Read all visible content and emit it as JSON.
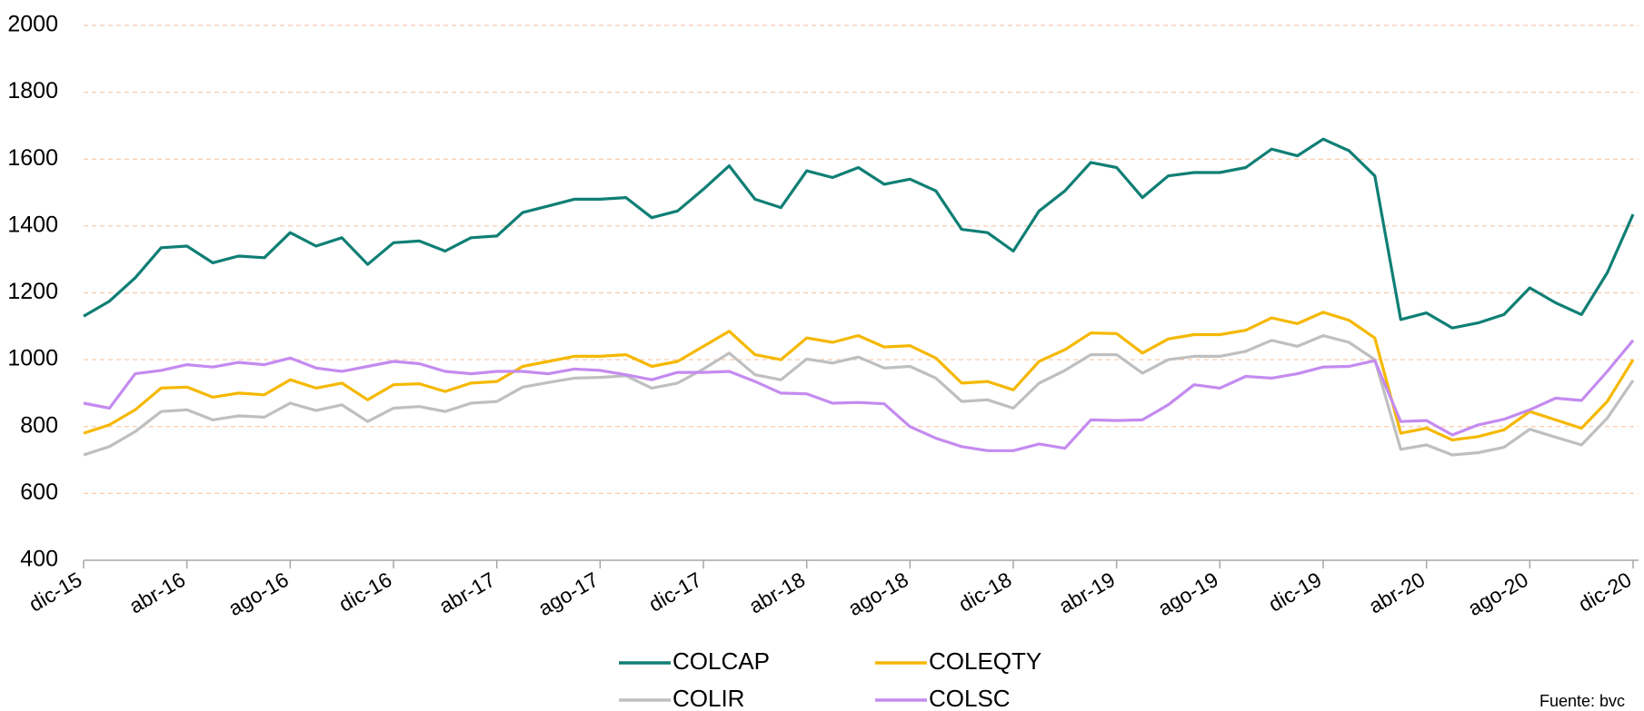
{
  "chart_data": {
    "type": "line",
    "categories": [
      "dic-15",
      null,
      null,
      null,
      "abr-16",
      null,
      null,
      null,
      "ago-16",
      null,
      null,
      null,
      "dic-16",
      null,
      null,
      null,
      "abr-17",
      null,
      null,
      null,
      "ago-17",
      null,
      null,
      null,
      "dic-17",
      null,
      null,
      null,
      "abr-18",
      null,
      null,
      null,
      "ago-18",
      null,
      null,
      null,
      "dic-18",
      null,
      null,
      null,
      "abr-19",
      null,
      null,
      null,
      "ago-19",
      null,
      null,
      null,
      "dic-19",
      null,
      null,
      null,
      "abr-20",
      null,
      null,
      null,
      "ago-20",
      null,
      null,
      null,
      "dic-20"
    ],
    "series": [
      {
        "name": "COLCAP",
        "color": "#0f7f75",
        "values": [
          1130,
          1175,
          1245,
          1335,
          1340,
          1290,
          1310,
          1305,
          1380,
          1340,
          1365,
          1285,
          1350,
          1355,
          1325,
          1365,
          1370,
          1440,
          1460,
          1480,
          1480,
          1485,
          1425,
          1445,
          1510,
          1580,
          1480,
          1455,
          1565,
          1545,
          1575,
          1525,
          1540,
          1505,
          1390,
          1380,
          1325,
          1445,
          1505,
          1590,
          1575,
          1485,
          1550,
          1560,
          1560,
          1575,
          1630,
          1610,
          1660,
          1625,
          1550,
          1120,
          1140,
          1095,
          1110,
          1135,
          1215,
          1170,
          1135,
          1260,
          1435
        ]
      },
      {
        "name": "COLEQTY",
        "color": "#f5b800",
        "values": [
          780,
          805,
          850,
          915,
          918,
          888,
          900,
          895,
          940,
          915,
          930,
          880,
          925,
          928,
          905,
          930,
          935,
          980,
          995,
          1010,
          1010,
          1015,
          980,
          995,
          1040,
          1085,
          1015,
          1000,
          1065,
          1052,
          1072,
          1038,
          1042,
          1005,
          930,
          935,
          910,
          995,
          1030,
          1080,
          1078,
          1020,
          1062,
          1075,
          1075,
          1088,
          1125,
          1108,
          1142,
          1118,
          1065,
          780,
          795,
          760,
          770,
          790,
          845,
          820,
          795,
          875,
          1000
        ]
      },
      {
        "name": "COLIR",
        "color": "#bfbfbf",
        "values": [
          715,
          740,
          785,
          845,
          850,
          820,
          832,
          828,
          870,
          848,
          865,
          815,
          855,
          860,
          845,
          870,
          875,
          918,
          932,
          945,
          947,
          952,
          915,
          930,
          972,
          1020,
          955,
          940,
          1002,
          990,
          1008,
          975,
          980,
          945,
          875,
          880,
          855,
          930,
          968,
          1015,
          1015,
          960,
          1000,
          1010,
          1010,
          1025,
          1058,
          1040,
          1072,
          1052,
          1000,
          732,
          745,
          715,
          722,
          738,
          792,
          768,
          745,
          825,
          938
        ]
      },
      {
        "name": "COLSC",
        "color": "#c48bf0",
        "values": [
          870,
          855,
          958,
          968,
          985,
          978,
          992,
          985,
          1005,
          975,
          965,
          980,
          995,
          988,
          965,
          958,
          965,
          965,
          958,
          972,
          968,
          955,
          940,
          962,
          962,
          965,
          935,
          900,
          898,
          870,
          872,
          868,
          800,
          765,
          740,
          728,
          728,
          748,
          735,
          820,
          818,
          820,
          865,
          925,
          915,
          950,
          945,
          958,
          978,
          980,
          997,
          815,
          818,
          775,
          805,
          822,
          850,
          885,
          878,
          965,
          1058
        ]
      }
    ],
    "ylim": [
      400,
      2000
    ],
    "yticks": [
      400,
      600,
      800,
      1000,
      1200,
      1400,
      1600,
      1800,
      2000
    ],
    "grid": true,
    "source": "Fuente: bvc"
  }
}
